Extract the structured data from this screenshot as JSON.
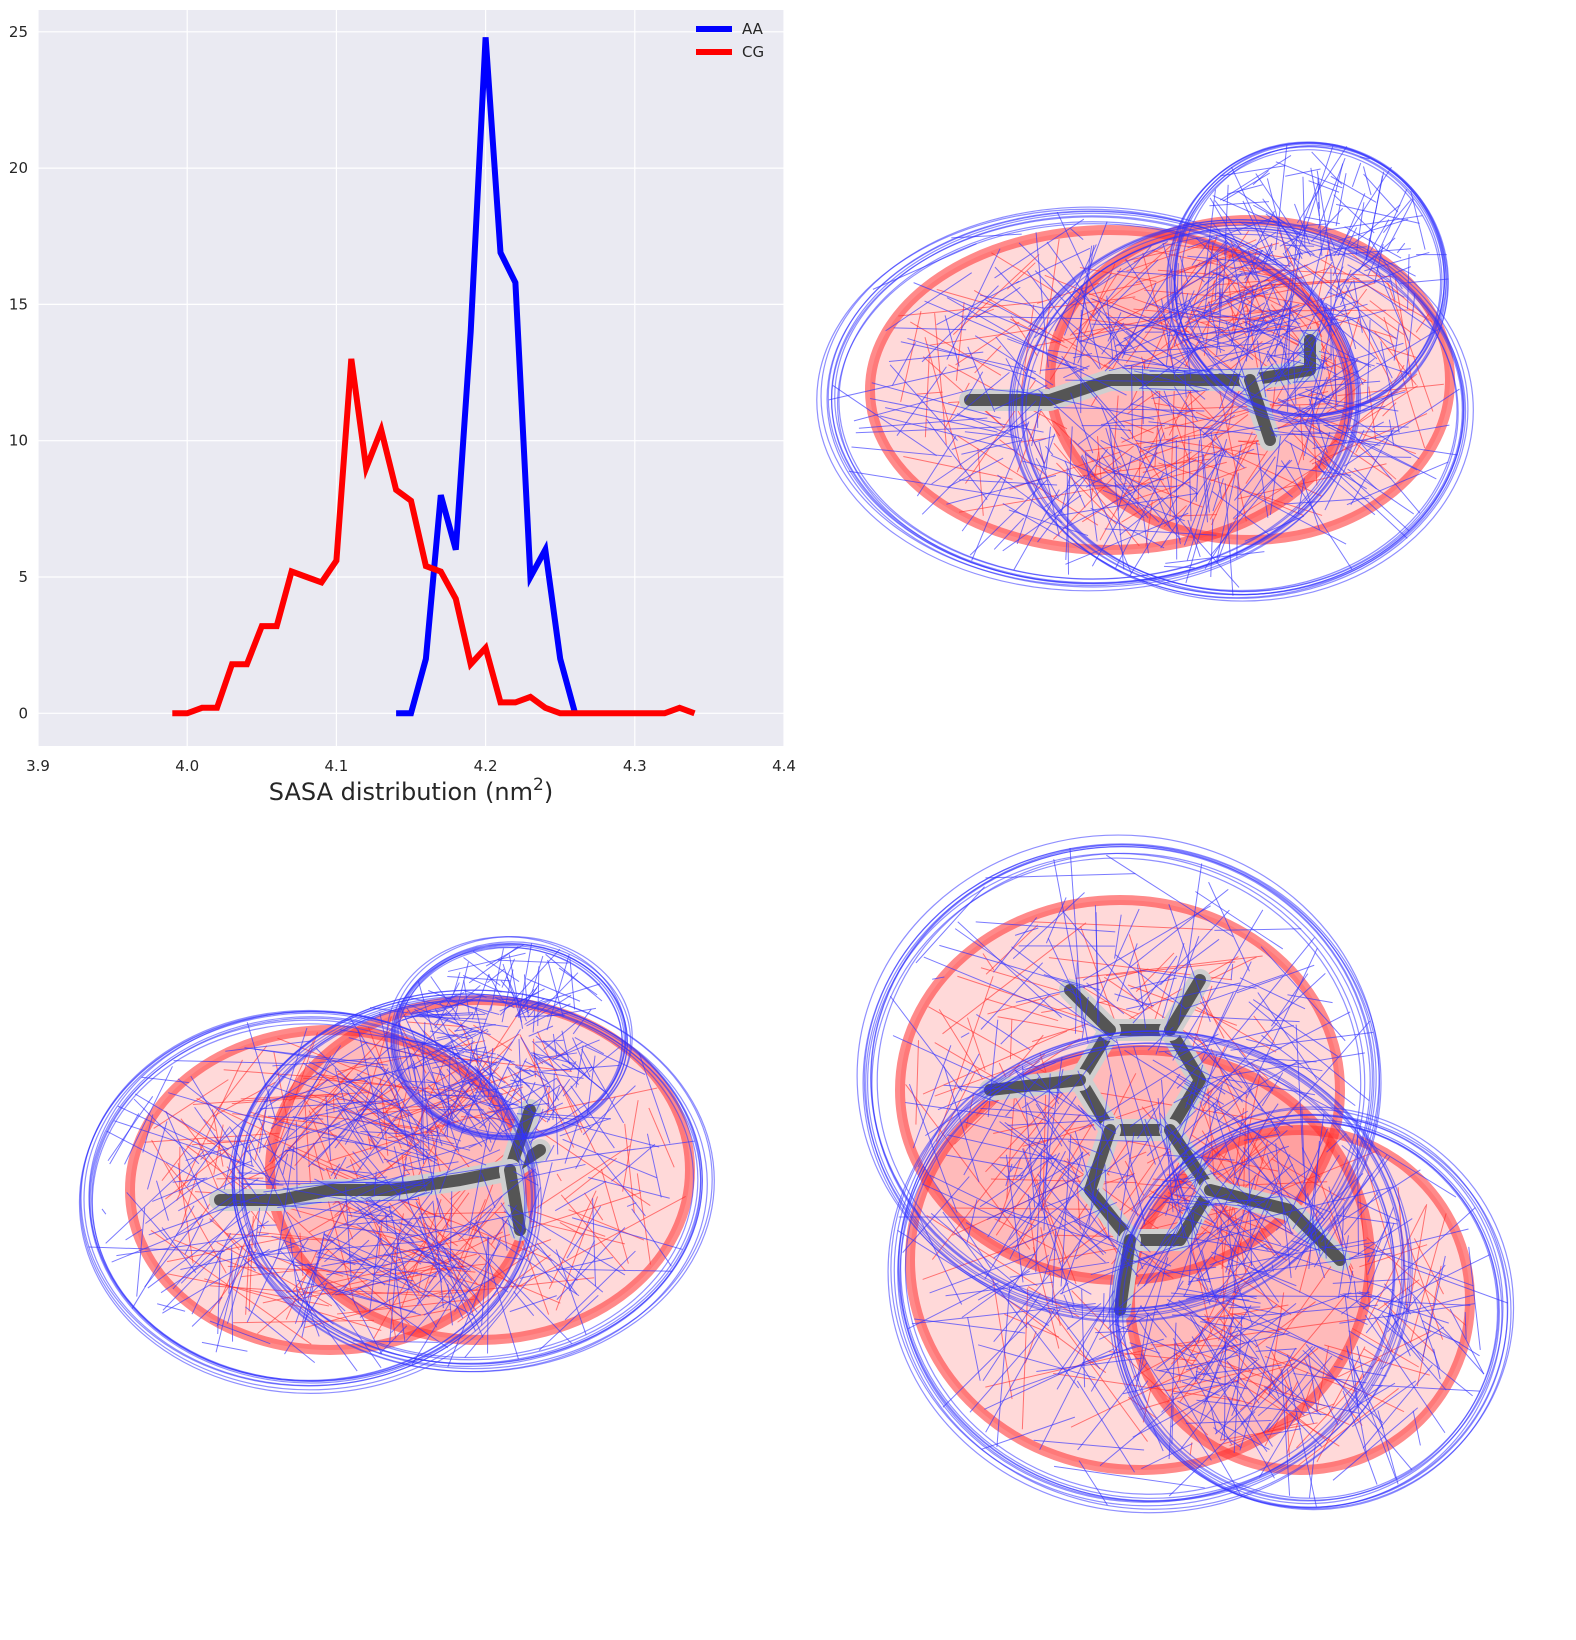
{
  "chart_data": {
    "type": "line",
    "xlabel": "SASA distribution (nm",
    "xlabel_superscript": "2",
    "xlabel_suffix": ")",
    "ylabel": "",
    "xlim": [
      3.9,
      4.4
    ],
    "ylim": [
      -1.2,
      25.8
    ],
    "xticks": [
      3.9,
      4.0,
      4.1,
      4.2,
      4.3,
      4.4
    ],
    "xtick_labels": [
      "3.9",
      "4.0",
      "4.1",
      "4.2",
      "4.3",
      "4.4"
    ],
    "yticks": [
      0,
      5,
      10,
      15,
      20,
      25
    ],
    "ytick_labels": [
      "0",
      "5",
      "10",
      "15",
      "20",
      "25"
    ],
    "grid": true,
    "legend_position": "top-right",
    "series": [
      {
        "name": "AA",
        "color": "#0000ff",
        "x": [
          4.14,
          4.15,
          4.16,
          4.17,
          4.18,
          4.19,
          4.2,
          4.21,
          4.22,
          4.23,
          4.24,
          4.25,
          4.26
        ],
        "y": [
          0,
          0,
          2,
          8,
          6,
          14,
          24.8,
          16.9,
          15.8,
          5,
          6,
          2,
          0
        ]
      },
      {
        "name": "CG",
        "color": "#ff0000",
        "x": [
          3.99,
          4.0,
          4.01,
          4.02,
          4.03,
          4.04,
          4.05,
          4.06,
          4.07,
          4.08,
          4.09,
          4.1,
          4.11,
          4.12,
          4.13,
          4.14,
          4.15,
          4.16,
          4.17,
          4.18,
          4.19,
          4.2,
          4.21,
          4.22,
          4.23,
          4.24,
          4.25,
          4.26,
          4.27,
          4.28,
          4.29,
          4.3,
          4.31,
          4.32,
          4.33,
          4.34
        ],
        "y": [
          0,
          0,
          0.2,
          0.2,
          1.8,
          1.8,
          3.2,
          3.2,
          5.2,
          5.0,
          4.8,
          5.6,
          13,
          9,
          10.4,
          8.2,
          7.8,
          5.4,
          5.2,
          4.2,
          1.8,
          2.4,
          0.4,
          0.4,
          0.6,
          0.2,
          0,
          0,
          0,
          0,
          0,
          0,
          0,
          0,
          0.2,
          0
        ]
      }
    ]
  },
  "colors": {
    "plot_background": "#eaeaf2",
    "grid": "#ffffff",
    "wire_blue": "#3333ff",
    "wire_red": "#ff2a2a",
    "molecule_dark": "#555555",
    "molecule_light": "#cfcfcf"
  },
  "panels": [
    {
      "name": "molecule-view-top-right",
      "description_icon": "mesh-surface-icon"
    },
    {
      "name": "molecule-view-bottom-left",
      "description_icon": "mesh-surface-icon"
    },
    {
      "name": "molecule-view-bottom-right",
      "description_icon": "mesh-surface-icon"
    }
  ]
}
